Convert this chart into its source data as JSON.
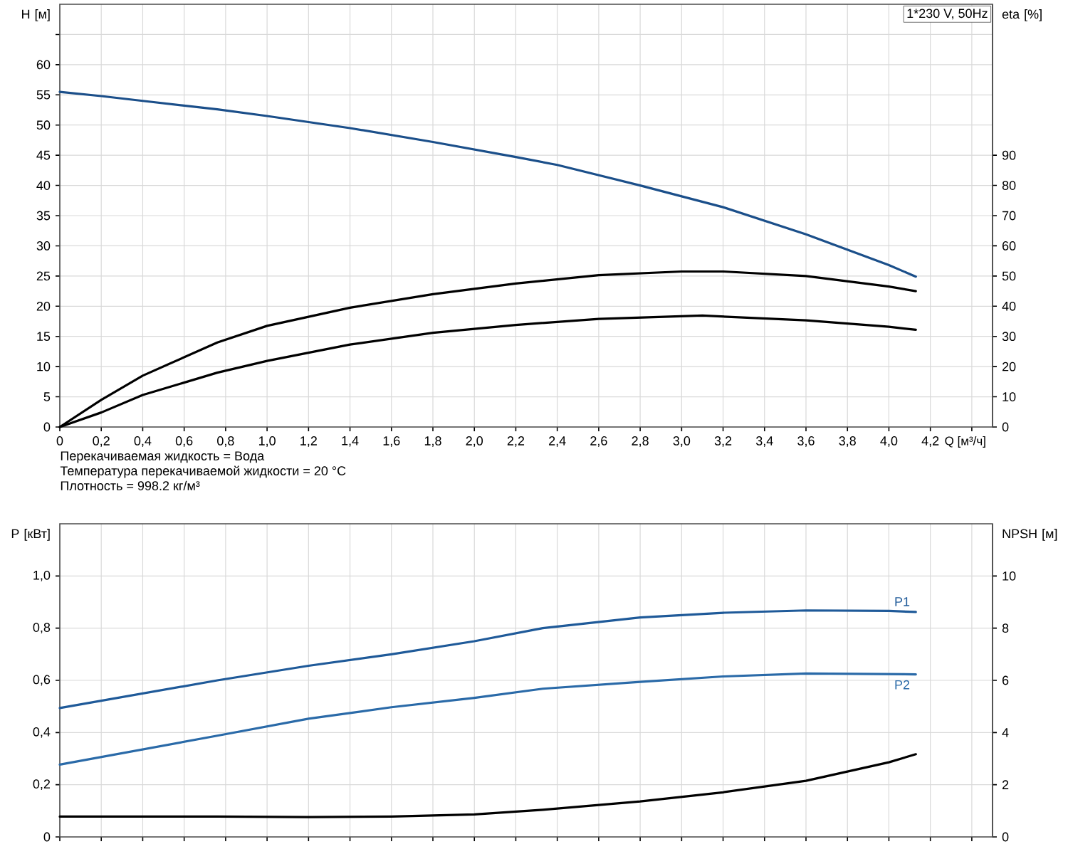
{
  "chart_data": [
    {
      "type": "line",
      "ylabel": "H [м]",
      "y2label": "eta [%]",
      "xlabel": "Q [м³/ч]",
      "annotations": [
        "1*230 V, 50Hz",
        "Перекачиваемая жидкость = Вода",
        "Температура перекачиваемой жидкости = 20 °C",
        "Плотность = 998.2 кг/м³"
      ],
      "xlim": [
        0,
        4.5
      ],
      "ylim": [
        0,
        70
      ],
      "y2lim": [
        0,
        140
      ],
      "xticks": [
        0,
        {
          "value": 0.2,
          "label": "0,2"
        },
        {
          "value": 0.4,
          "label": "0,4"
        },
        {
          "value": 0.6,
          "label": "0,6"
        },
        {
          "value": 0.8,
          "label": "0,8"
        },
        {
          "value": 1.0,
          "label": "1,0"
        },
        {
          "value": 1.2,
          "label": "1,2"
        },
        {
          "value": 1.4,
          "label": "1,4"
        },
        {
          "value": 1.6,
          "label": "1,6"
        },
        {
          "value": 1.8,
          "label": "1,8"
        },
        {
          "value": 2.0,
          "label": "2,0"
        },
        {
          "value": 2.2,
          "label": "2,2"
        },
        {
          "value": 2.4,
          "label": "2,4"
        },
        {
          "value": 2.6,
          "label": "2,6"
        },
        {
          "value": 2.8,
          "label": "2,8"
        },
        {
          "value": 3.0,
          "label": "3,0"
        },
        {
          "value": 3.2,
          "label": "3,2"
        },
        {
          "value": 3.4,
          "label": "3,4"
        },
        {
          "value": 3.6,
          "label": "3,6"
        },
        {
          "value": 3.8,
          "label": "3,8"
        },
        {
          "value": 4.0,
          "label": "4,0"
        },
        {
          "value": 4.2,
          "label": "4,2"
        },
        {
          "value": 4.4,
          "label": null
        }
      ],
      "yticks": [
        0,
        5,
        10,
        15,
        20,
        25,
        30,
        35,
        40,
        45,
        50,
        55,
        60,
        {
          "value": 65,
          "label": null
        }
      ],
      "y2ticks": [
        0,
        10,
        20,
        30,
        40,
        50,
        60,
        70,
        80,
        90
      ],
      "grid": true,
      "series": [
        {
          "color": "#1b4f8a",
          "x": [
            0,
            0.2,
            0.4,
            0.76,
            1.0,
            1.4,
            1.8,
            2.2,
            2.4,
            2.8,
            3.2,
            3.6,
            4.0,
            4.13
          ],
          "values": [
            55.5,
            54.8,
            54.0,
            52.6,
            51.5,
            49.5,
            47.2,
            44.7,
            43.4,
            40.0,
            36.4,
            31.9,
            26.8,
            24.9
          ]
        },
        {
          "color": "#000000",
          "axis": "y2",
          "x": [
            0,
            0.2,
            0.4,
            0.76,
            1.0,
            1.4,
            1.8,
            2.2,
            2.6,
            3.0,
            3.2,
            3.6,
            4.0,
            4.13
          ],
          "values": [
            0,
            9,
            17,
            28,
            33.5,
            39.5,
            44,
            47.5,
            50.3,
            51.5,
            51.5,
            50,
            46.5,
            45
          ]
        },
        {
          "color": "#000000",
          "axis": "y2",
          "x": [
            0,
            0.2,
            0.4,
            0.76,
            1.0,
            1.4,
            1.8,
            2.2,
            2.6,
            3.1,
            3.6,
            4.0,
            4.13
          ],
          "values": [
            0,
            4.8,
            10.6,
            18.0,
            21.9,
            27.3,
            31.2,
            33.8,
            35.8,
            36.9,
            35.3,
            33.2,
            32.2
          ]
        }
      ]
    },
    {
      "type": "line",
      "ylabel": "P [кВт]",
      "y2label": "NPSH [м]",
      "xlim": [
        0,
        4.5
      ],
      "ylim": [
        0,
        1.2
      ],
      "y2lim": [
        0,
        12
      ],
      "tick_labels": "y",
      "xticks": [
        {
          "value": 0,
          "label": null
        },
        {
          "value": 0.2,
          "label": null
        },
        {
          "value": 0.4,
          "label": null
        },
        {
          "value": 0.6,
          "label": null
        },
        {
          "value": 0.8,
          "label": null
        },
        {
          "value": 1.0,
          "label": null
        },
        {
          "value": 1.2,
          "label": null
        },
        {
          "value": 1.4,
          "label": null
        },
        {
          "value": 1.6,
          "label": null
        },
        {
          "value": 1.8,
          "label": null
        },
        {
          "value": 2.0,
          "label": null
        },
        {
          "value": 2.2,
          "label": null
        },
        {
          "value": 2.4,
          "label": null
        },
        {
          "value": 2.6,
          "label": null
        },
        {
          "value": 2.8,
          "label": null
        },
        {
          "value": 3.0,
          "label": null
        },
        {
          "value": 3.2,
          "label": null
        },
        {
          "value": 3.4,
          "label": null
        },
        {
          "value": 3.6,
          "label": null
        },
        {
          "value": 3.8,
          "label": null
        },
        {
          "value": 4.0,
          "label": null
        },
        {
          "value": 4.2,
          "label": null
        },
        {
          "value": 4.4,
          "label": null
        }
      ],
      "yticks": [
        0,
        {
          "value": 0.2,
          "label": "0,2"
        },
        {
          "value": 0.4,
          "label": "0,4"
        },
        {
          "value": 0.6,
          "label": "0,6"
        },
        {
          "value": 0.8,
          "label": "0,8"
        },
        {
          "value": 1.0,
          "label": "1,0"
        }
      ],
      "y2ticks": [
        0,
        2,
        4,
        6,
        8,
        10
      ],
      "grid": true,
      "series": [
        {
          "name": "P1",
          "color": "#1f5a99",
          "x": [
            0,
            0.76,
            1.2,
            1.6,
            2.0,
            2.33,
            2.8,
            3.2,
            3.6,
            4.0,
            4.13
          ],
          "values": [
            0.494,
            0.6,
            0.656,
            0.7,
            0.75,
            0.8,
            0.841,
            0.859,
            0.868,
            0.866,
            0.862
          ]
        },
        {
          "name": "P2",
          "color": "#2a6aa8",
          "x": [
            0,
            0.76,
            1.2,
            1.6,
            2.0,
            2.33,
            2.8,
            3.2,
            3.6,
            4.13
          ],
          "values": [
            0.277,
            0.388,
            0.453,
            0.497,
            0.533,
            0.568,
            0.594,
            0.615,
            0.626,
            0.623
          ]
        },
        {
          "color": "#000000",
          "axis": "y2",
          "x": [
            0,
            0.76,
            1.2,
            1.6,
            2.0,
            2.33,
            2.8,
            3.2,
            3.6,
            4.0,
            4.13
          ],
          "values": [
            0.78,
            0.78,
            0.76,
            0.78,
            0.86,
            1.04,
            1.36,
            1.71,
            2.15,
            2.86,
            3.17
          ]
        }
      ]
    }
  ]
}
